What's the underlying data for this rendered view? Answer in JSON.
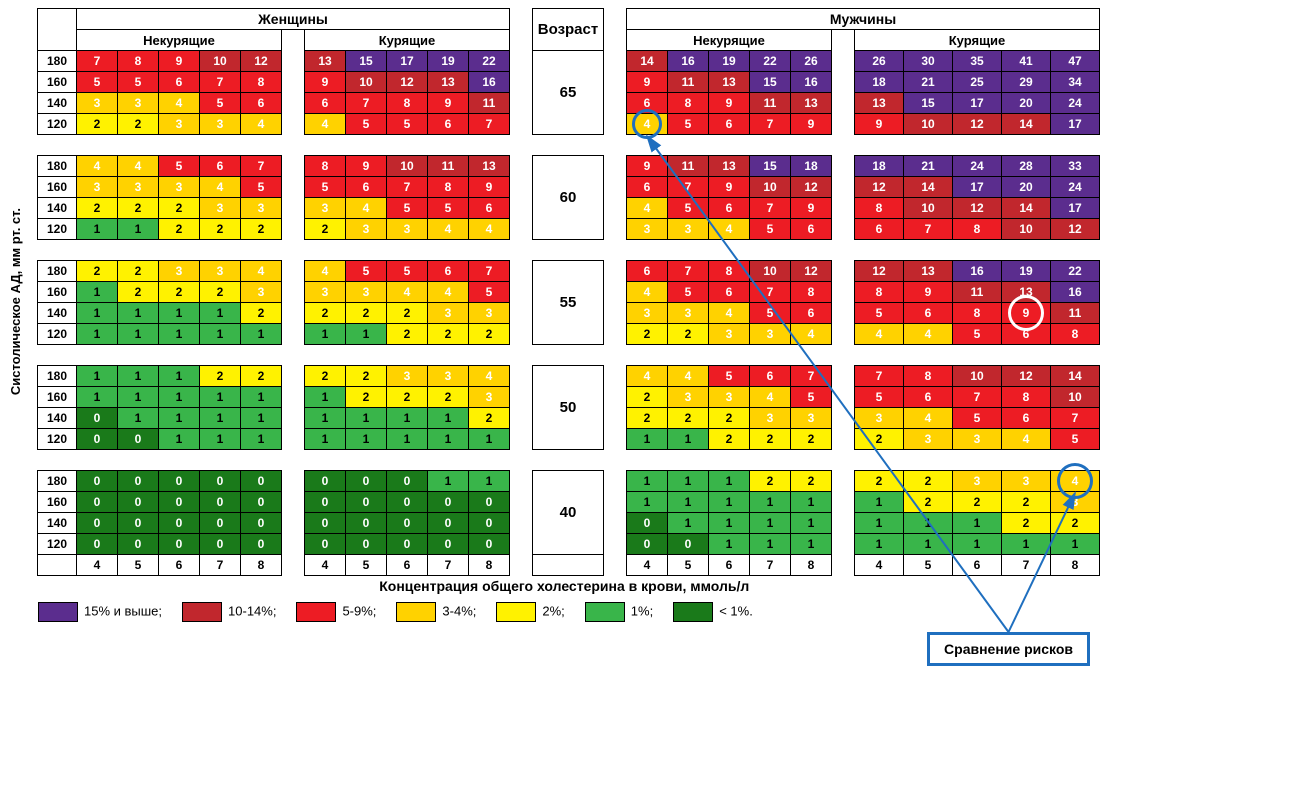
{
  "type": "risk-heatmap-table",
  "title_women": "Женщины",
  "title_men": "Мужчины",
  "title_age": "Возраст",
  "sub_nonsmoke": "Некурящие",
  "sub_smoke": "Курящие",
  "y_axis_label": "Систолическое АД, мм рт. ст.",
  "x_axis_label": "Концентрация общего холестерина в крови, ммоль/л",
  "bp_rows": [
    "180",
    "160",
    "140",
    "120"
  ],
  "chol_cols": [
    "4",
    "5",
    "6",
    "7",
    "8"
  ],
  "ages": [
    "65",
    "60",
    "55",
    "50",
    "40"
  ],
  "colors": {
    "c15": "#5b2d8e",
    "c10": "#c1272d",
    "c5": "#ed1c24",
    "c3": "#ffd200",
    "c2": "#fff200",
    "c1": "#39b54a",
    "c0": "#1a7a1a",
    "border": "#000000",
    "callout_border": "#1f6fbf",
    "arrow": "#1f6fbf",
    "bg": "#ffffff"
  },
  "legend": [
    {
      "label": "15% и выше;",
      "key": "c15"
    },
    {
      "label": "10-14%;",
      "key": "c10"
    },
    {
      "label": "5-9%;",
      "key": "c5"
    },
    {
      "label": "3-4%;",
      "key": "c3"
    },
    {
      "label": "2%;",
      "key": "c2"
    },
    {
      "label": "1%;",
      "key": "c1"
    },
    {
      "label": "< 1%.",
      "key": "c0"
    }
  ],
  "callout_label": "Сравнение рисков",
  "fontsize": {
    "header": 14,
    "subheader": 13,
    "cell": 12,
    "age": 15,
    "legend": 13,
    "xlabel": 14,
    "ylabel": 13
  },
  "blocks": {
    "65": {
      "women_ns": [
        [
          7,
          8,
          9,
          10,
          12
        ],
        [
          5,
          5,
          6,
          7,
          8
        ],
        [
          3,
          3,
          4,
          5,
          6
        ],
        [
          2,
          2,
          3,
          3,
          4
        ]
      ],
      "women_s": [
        [
          13,
          15,
          17,
          19,
          22
        ],
        [
          9,
          10,
          12,
          13,
          16
        ],
        [
          6,
          7,
          8,
          9,
          11
        ],
        [
          4,
          5,
          5,
          6,
          7
        ]
      ],
      "men_ns": [
        [
          14,
          16,
          19,
          22,
          26
        ],
        [
          9,
          11,
          13,
          15,
          16
        ],
        [
          6,
          8,
          9,
          11,
          13
        ],
        [
          4,
          5,
          6,
          7,
          9
        ]
      ],
      "men_s": [
        [
          26,
          30,
          35,
          41,
          47
        ],
        [
          18,
          21,
          25,
          29,
          34
        ],
        [
          13,
          15,
          17,
          20,
          24
        ],
        [
          9,
          10,
          12,
          14,
          17
        ]
      ]
    },
    "60": {
      "women_ns": [
        [
          4,
          4,
          5,
          6,
          7
        ],
        [
          3,
          3,
          3,
          4,
          5
        ],
        [
          2,
          2,
          2,
          3,
          3
        ],
        [
          1,
          1,
          2,
          2,
          2
        ]
      ],
      "women_s": [
        [
          8,
          9,
          10,
          11,
          13
        ],
        [
          5,
          6,
          7,
          8,
          9
        ],
        [
          3,
          4,
          5,
          5,
          6
        ],
        [
          2,
          3,
          3,
          4,
          4
        ]
      ],
      "men_ns": [
        [
          9,
          11,
          13,
          15,
          18
        ],
        [
          6,
          7,
          9,
          10,
          12
        ],
        [
          4,
          5,
          6,
          7,
          9
        ],
        [
          3,
          3,
          4,
          5,
          6
        ]
      ],
      "men_s": [
        [
          18,
          21,
          24,
          28,
          33
        ],
        [
          12,
          14,
          17,
          20,
          24
        ],
        [
          8,
          10,
          12,
          14,
          17
        ],
        [
          6,
          7,
          8,
          10,
          12
        ]
      ]
    },
    "55": {
      "women_ns": [
        [
          2,
          2,
          3,
          3,
          4
        ],
        [
          1,
          2,
          2,
          2,
          3
        ],
        [
          1,
          1,
          1,
          1,
          2
        ],
        [
          1,
          1,
          1,
          1,
          1
        ]
      ],
      "women_s": [
        [
          4,
          5,
          5,
          6,
          7
        ],
        [
          3,
          3,
          4,
          4,
          5
        ],
        [
          2,
          2,
          2,
          3,
          3
        ],
        [
          1,
          1,
          2,
          2,
          2
        ]
      ],
      "men_ns": [
        [
          6,
          7,
          8,
          10,
          12
        ],
        [
          4,
          5,
          6,
          7,
          8
        ],
        [
          3,
          3,
          4,
          5,
          6
        ],
        [
          2,
          2,
          3,
          3,
          4
        ]
      ],
      "men_s": [
        [
          12,
          13,
          16,
          19,
          22
        ],
        [
          8,
          9,
          11,
          13,
          16
        ],
        [
          5,
          6,
          8,
          9,
          11
        ],
        [
          4,
          4,
          5,
          6,
          8
        ]
      ]
    },
    "50": {
      "women_ns": [
        [
          1,
          1,
          1,
          2,
          2
        ],
        [
          1,
          1,
          1,
          1,
          1
        ],
        [
          0,
          1,
          1,
          1,
          1
        ],
        [
          0,
          0,
          1,
          1,
          1
        ]
      ],
      "women_s": [
        [
          2,
          2,
          3,
          3,
          4
        ],
        [
          1,
          2,
          2,
          2,
          3
        ],
        [
          1,
          1,
          1,
          1,
          2
        ],
        [
          1,
          1,
          1,
          1,
          1
        ]
      ],
      "men_ns": [
        [
          4,
          4,
          5,
          6,
          7
        ],
        [
          2,
          3,
          3,
          4,
          5
        ],
        [
          2,
          2,
          2,
          3,
          3
        ],
        [
          1,
          1,
          2,
          2,
          2
        ]
      ],
      "men_s": [
        [
          7,
          8,
          10,
          12,
          14
        ],
        [
          5,
          6,
          7,
          8,
          10
        ],
        [
          3,
          4,
          5,
          6,
          7
        ],
        [
          2,
          3,
          3,
          4,
          5
        ]
      ]
    },
    "40": {
      "women_ns": [
        [
          0,
          0,
          0,
          0,
          0
        ],
        [
          0,
          0,
          0,
          0,
          0
        ],
        [
          0,
          0,
          0,
          0,
          0
        ],
        [
          0,
          0,
          0,
          0,
          0
        ]
      ],
      "women_s": [
        [
          0,
          0,
          0,
          1,
          1
        ],
        [
          0,
          0,
          0,
          0,
          0
        ],
        [
          0,
          0,
          0,
          0,
          0
        ],
        [
          0,
          0,
          0,
          0,
          0
        ]
      ],
      "men_ns": [
        [
          1,
          1,
          1,
          2,
          2
        ],
        [
          1,
          1,
          1,
          1,
          1
        ],
        [
          0,
          1,
          1,
          1,
          1
        ],
        [
          0,
          0,
          1,
          1,
          1
        ]
      ],
      "men_s": [
        [
          2,
          2,
          3,
          3,
          4
        ],
        [
          1,
          2,
          2,
          2,
          3
        ],
        [
          1,
          1,
          1,
          2,
          2
        ],
        [
          1,
          1,
          1,
          1,
          1
        ]
      ]
    }
  },
  "markers": [
    {
      "age": "65",
      "group": "men_ns",
      "row": 3,
      "col": 0,
      "color": "blue"
    },
    {
      "age": "55",
      "group": "men_s",
      "row": 2,
      "col": 3,
      "color": "white"
    },
    {
      "age": "40",
      "group": "men_s",
      "row": 0,
      "col": 4,
      "color": "blue"
    }
  ]
}
